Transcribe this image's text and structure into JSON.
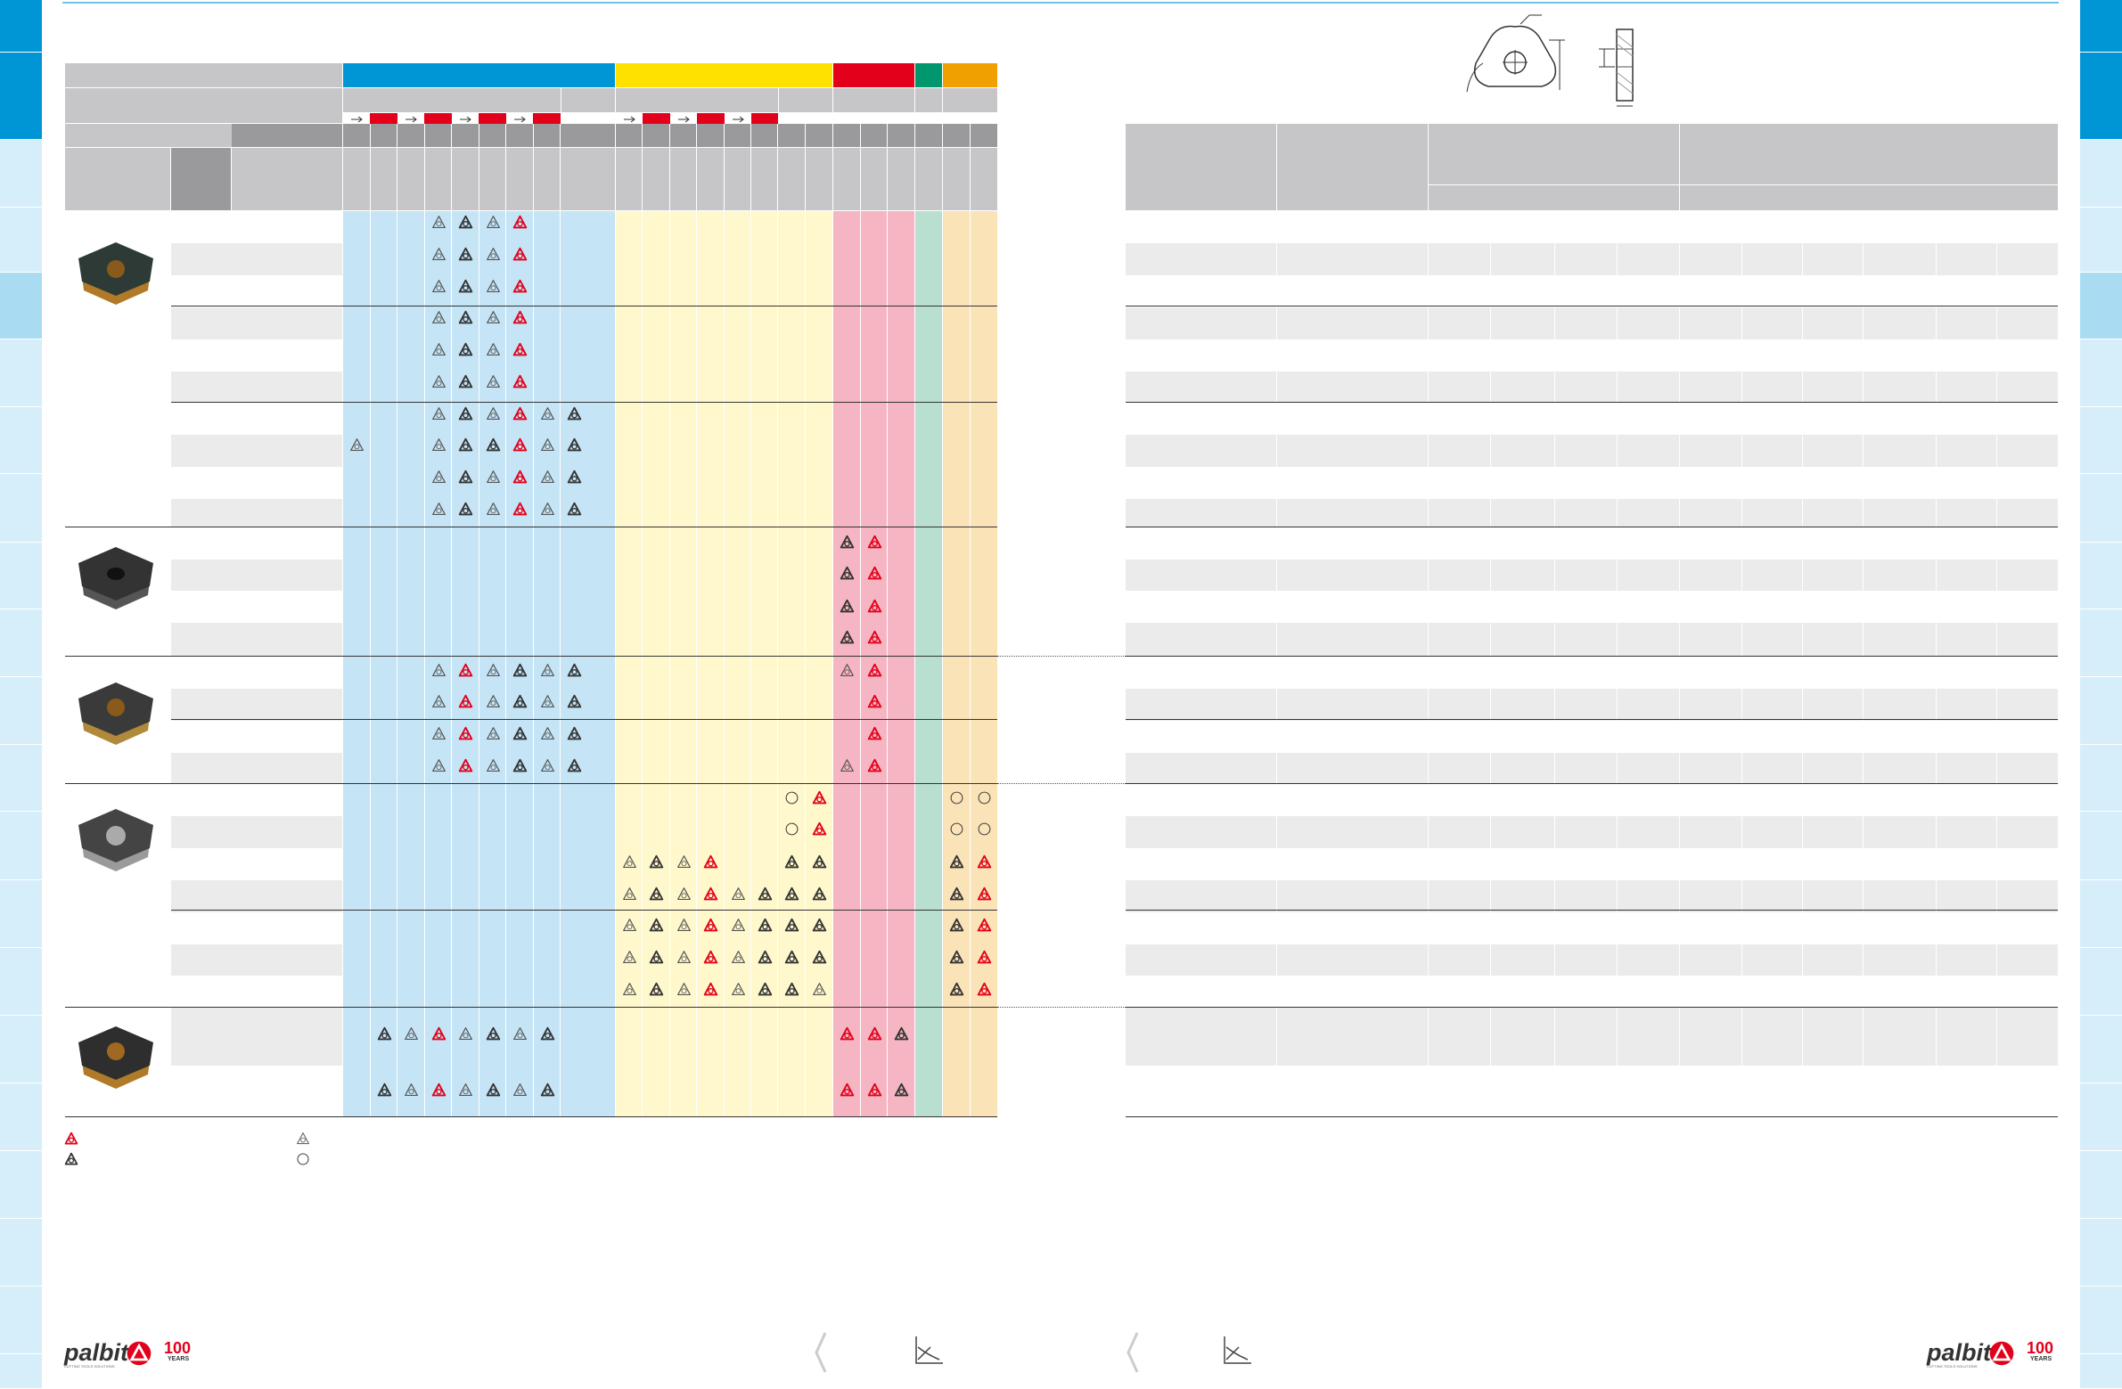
{
  "colors": {
    "blue": "#0096d6",
    "lightBlue": "#c5e4f5",
    "yellow": "#ffe100",
    "lightYellow": "#fff8cc",
    "red": "#e2001a",
    "pink": "#f6b5c3",
    "green": "#00966e",
    "lightGreen": "#b9dfd0",
    "orange": "#f0a000",
    "lightOrange": "#fbe3b8",
    "headerGray": "#c6c6c8",
    "darkGray": "#9a9a9c",
    "stripe": "#ebebeb"
  },
  "icons": {
    "recommended": "red-triangle-icon",
    "alternative": "dark-triangle-icon",
    "gray": "outline-triangle-icon",
    "circle": "circle-icon",
    "arrow": "arrow-right-icon"
  },
  "brand": {
    "logo_text": "palbit",
    "anniversary": "100",
    "anniversary_word": "YEARS",
    "tagline": "CUTTING TOOLS SOLUTIONS"
  },
  "legend": [
    {
      "icon": "red-triangle-icon",
      "label": ""
    },
    {
      "icon": "dark-triangle-icon",
      "label": ""
    },
    {
      "icon": "outline-triangle-icon",
      "label": ""
    },
    {
      "icon": "circle-icon",
      "label": ""
    }
  ],
  "grid": {
    "rows": [
      {
        "marks": {
          "M3": "g",
          "M4": "d",
          "M5": "g",
          "M6": "r"
        }
      },
      {
        "marks": {
          "M3": "g",
          "M4": "d",
          "M5": "g",
          "M6": "r"
        }
      },
      {
        "marks": {
          "M3": "g",
          "M4": "d",
          "M5": "g",
          "M6": "r"
        }
      },
      {
        "marks": {
          "M3": "g",
          "M4": "d",
          "M5": "g",
          "M6": "r"
        }
      },
      {
        "marks": {
          "M3": "g",
          "M4": "d",
          "M5": "g",
          "M6": "r"
        }
      },
      {
        "marks": {
          "M3": "g",
          "M4": "d",
          "M5": "g",
          "M6": "r"
        }
      },
      {
        "marks": {
          "M3": "g",
          "M4": "d",
          "M5": "g",
          "M6": "r",
          "M7": "g",
          "M8": "d"
        }
      },
      {
        "marks": {
          "M0": "g",
          "M3": "g",
          "M4": "d",
          "M5": "d",
          "M6": "r",
          "M7": "g",
          "M8": "d"
        }
      },
      {
        "marks": {
          "M3": "g",
          "M4": "d",
          "M5": "g",
          "M6": "r",
          "M7": "g",
          "M8": "d"
        }
      },
      {
        "marks": {
          "M3": "g",
          "M4": "d",
          "M5": "g",
          "M6": "r",
          "M7": "g",
          "M8": "d"
        }
      },
      {
        "marks": {
          "R0": "d",
          "R1": "r"
        }
      },
      {
        "marks": {
          "R0": "d",
          "R1": "r"
        }
      },
      {
        "marks": {
          "R0": "d",
          "R1": "r"
        }
      },
      {
        "marks": {
          "R0": "d",
          "R1": "r"
        }
      },
      {
        "marks": {
          "M3": "g",
          "M4": "r",
          "M5": "g",
          "M6": "d",
          "M7": "g",
          "M8": "d",
          "R0": "g",
          "R1": "r"
        }
      },
      {
        "marks": {
          "M3": "g",
          "M4": "r",
          "M5": "g",
          "M6": "d",
          "M7": "g",
          "M8": "d",
          "R1": "r"
        }
      },
      {
        "marks": {
          "M3": "g",
          "M4": "r",
          "M5": "g",
          "M6": "d",
          "M7": "g",
          "M8": "d",
          "R1": "r"
        }
      },
      {
        "marks": {
          "M3": "g",
          "M4": "r",
          "M5": "g",
          "M6": "d",
          "M7": "g",
          "M8": "d",
          "R0": "g",
          "R1": "r"
        }
      },
      {
        "marks": {
          "S6": "c",
          "S7": "r",
          "H0": "c",
          "H1": "c"
        }
      },
      {
        "marks": {
          "S6": "c",
          "S7": "r",
          "H0": "c",
          "H1": "c"
        }
      },
      {
        "marks": {
          "S0": "g",
          "S1": "d",
          "S2": "g",
          "S3": "r",
          "S6": "d",
          "S7": "d",
          "H0": "d",
          "H1": "r"
        }
      },
      {
        "marks": {
          "S0": "g",
          "S1": "d",
          "S2": "g",
          "S3": "r",
          "S4": "g",
          "S5": "d",
          "S6": "d",
          "S7": "d",
          "H0": "d",
          "H1": "r"
        }
      },
      {
        "marks": {
          "S0": "g",
          "S1": "d",
          "S2": "g",
          "S3": "r",
          "S4": "g",
          "S5": "d",
          "S6": "d",
          "S7": "d",
          "H0": "d",
          "H1": "r"
        }
      },
      {
        "marks": {
          "S0": "g",
          "S1": "d",
          "S2": "g",
          "S3": "r",
          "S4": "g",
          "S5": "d",
          "S6": "d",
          "S7": "d",
          "H0": "d",
          "H1": "r"
        }
      },
      {
        "marks": {
          "S0": "g",
          "S1": "d",
          "S2": "g",
          "S3": "r",
          "S4": "g",
          "S5": "d",
          "S6": "d",
          "S7": "g",
          "H0": "d",
          "H1": "r"
        }
      },
      {
        "marks": {
          "M1": "d",
          "M2": "g",
          "M3": "r",
          "M4": "g",
          "M5": "d",
          "M6": "g",
          "M7": "d",
          "R0": "r",
          "R1": "r",
          "R2": "d"
        }
      },
      {
        "marks": {
          "M1": "d",
          "M2": "g",
          "M3": "r",
          "M4": "g",
          "M5": "d",
          "M6": "g",
          "M7": "d",
          "R0": "r",
          "R1": "r",
          "R2": "d"
        }
      }
    ]
  }
}
